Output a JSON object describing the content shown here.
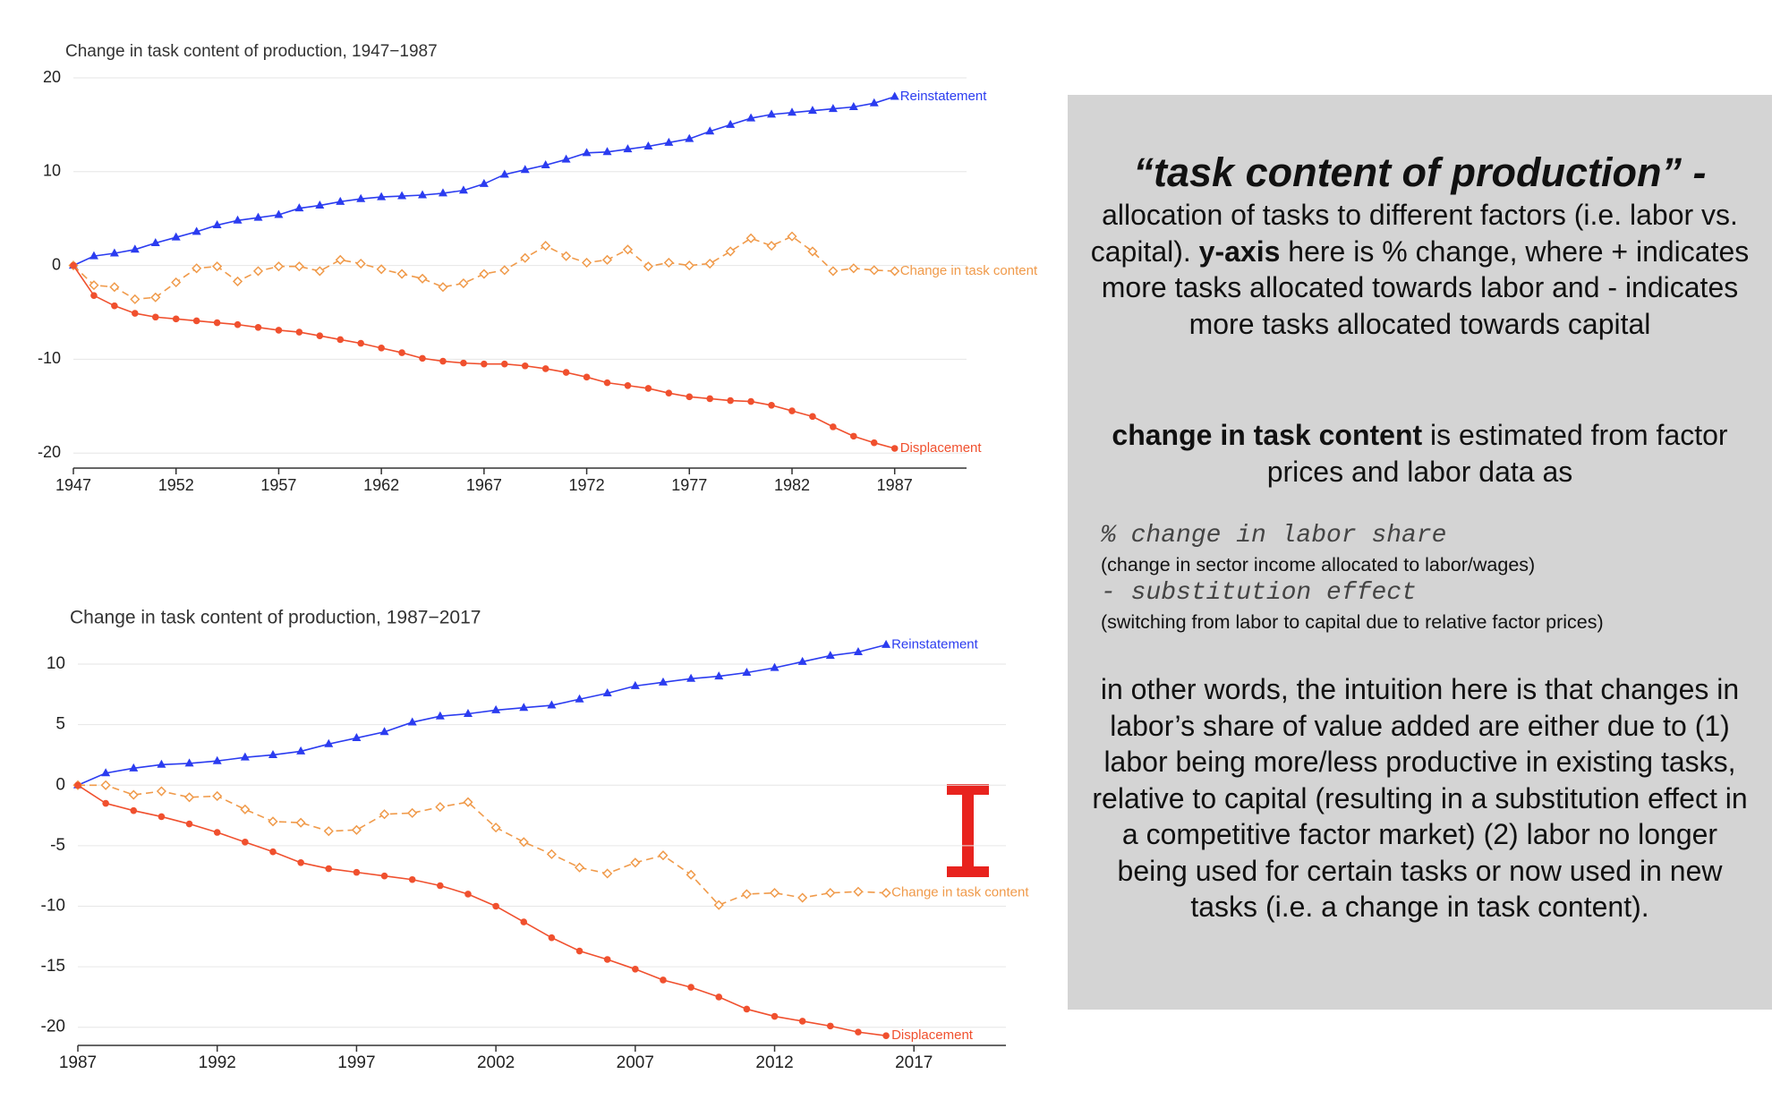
{
  "chart_data": [
    {
      "type": "line",
      "title": "Change in task content of production, 1947−1987",
      "x": [
        1947,
        1948,
        1949,
        1950,
        1951,
        1952,
        1953,
        1954,
        1955,
        1956,
        1957,
        1958,
        1959,
        1960,
        1961,
        1962,
        1963,
        1964,
        1965,
        1966,
        1967,
        1968,
        1969,
        1970,
        1971,
        1972,
        1973,
        1974,
        1975,
        1976,
        1977,
        1978,
        1979,
        1980,
        1981,
        1982,
        1983,
        1984,
        1985,
        1986,
        1987
      ],
      "xlim": [
        1947,
        1990.5
      ],
      "xticks": [
        1947,
        1952,
        1957,
        1962,
        1967,
        1972,
        1977,
        1982,
        1987
      ],
      "ylim": [
        -21.6,
        20
      ],
      "yticks": [
        -20,
        -10,
        0,
        10,
        20
      ],
      "grid": true,
      "series": [
        {
          "name": "Reinstatement",
          "color": "#2b3cf0",
          "marker": "triangle",
          "dashed": false,
          "values": [
            0,
            1,
            1.3,
            1.7,
            2.4,
            3,
            3.6,
            4.3,
            4.8,
            5.1,
            5.4,
            6.1,
            6.4,
            6.8,
            7.1,
            7.3,
            7.4,
            7.5,
            7.7,
            8,
            8.7,
            9.7,
            10.2,
            10.7,
            11.3,
            12,
            12.1,
            12.4,
            12.7,
            13.1,
            13.5,
            14.3,
            15,
            15.7,
            16.1,
            16.3,
            16.5,
            16.7,
            16.9,
            17.3,
            18
          ]
        },
        {
          "name": "Change in task content",
          "color": "#f09a4a",
          "marker": "diamond",
          "dashed": true,
          "values": [
            0,
            -2.1,
            -2.3,
            -3.6,
            -3.4,
            -1.8,
            -0.3,
            -0.1,
            -1.7,
            -0.6,
            -0.1,
            -0.1,
            -0.6,
            0.6,
            0.2,
            -0.4,
            -0.9,
            -1.4,
            -2.3,
            -1.9,
            -0.9,
            -0.5,
            0.8,
            2.1,
            1,
            0.3,
            0.6,
            1.7,
            -0.1,
            0.3,
            0,
            0.2,
            1.5,
            2.9,
            2.1,
            3.1,
            1.5,
            -0.6,
            -0.3,
            -0.5,
            -0.6
          ]
        },
        {
          "name": "Displacement",
          "color": "#f0502e",
          "marker": "circle",
          "dashed": false,
          "values": [
            0,
            -3.2,
            -4.3,
            -5.1,
            -5.5,
            -5.7,
            -5.9,
            -6.1,
            -6.3,
            -6.6,
            -6.9,
            -7.1,
            -7.5,
            -7.9,
            -8.3,
            -8.8,
            -9.3,
            -9.9,
            -10.2,
            -10.4,
            -10.5,
            -10.5,
            -10.7,
            -11,
            -11.4,
            -11.9,
            -12.5,
            -12.8,
            -13.1,
            -13.6,
            -14,
            -14.2,
            -14.4,
            -14.5,
            -14.9,
            -15.5,
            -16.1,
            -17.2,
            -18.2,
            -18.9,
            -19.5
          ]
        }
      ]
    },
    {
      "type": "line",
      "title": "Change in task content of production, 1987−2017",
      "x": [
        1987,
        1988,
        1989,
        1990,
        1991,
        1992,
        1993,
        1994,
        1995,
        1996,
        1997,
        1998,
        1999,
        2000,
        2001,
        2002,
        2003,
        2004,
        2005,
        2006,
        2007,
        2008,
        2009,
        2010,
        2011,
        2012,
        2013,
        2014,
        2015,
        2016
      ],
      "xlim": [
        1987,
        2020.3
      ],
      "xticks": [
        1987,
        1992,
        1997,
        2002,
        2007,
        2012,
        2017
      ],
      "ylim": [
        -21.5,
        12
      ],
      "yticks": [
        -20,
        -15,
        -10,
        -5,
        0,
        5,
        10
      ],
      "grid": true,
      "series": [
        {
          "name": "Reinstatement",
          "color": "#2b3cf0",
          "marker": "triangle",
          "dashed": false,
          "values": [
            0,
            1,
            1.4,
            1.7,
            1.8,
            2,
            2.3,
            2.5,
            2.8,
            3.4,
            3.9,
            4.4,
            5.2,
            5.7,
            5.9,
            6.2,
            6.4,
            6.6,
            7.1,
            7.6,
            8.2,
            8.5,
            8.8,
            9,
            9.3,
            9.7,
            10.2,
            10.7,
            11,
            11.6
          ]
        },
        {
          "name": "Change in task content",
          "color": "#f09a4a",
          "marker": "diamond",
          "dashed": true,
          "values": [
            0,
            0,
            -0.8,
            -0.5,
            -1,
            -0.9,
            -2,
            -3,
            -3.1,
            -3.8,
            -3.7,
            -2.4,
            -2.3,
            -1.8,
            -1.4,
            -3.5,
            -4.7,
            -5.7,
            -6.8,
            -7.3,
            -6.4,
            -5.8,
            -7.4,
            -9.9,
            -9,
            -8.9,
            -9.3,
            -8.9,
            -8.8,
            -8.9
          ]
        },
        {
          "name": "Displacement",
          "color": "#f0502e",
          "marker": "circle",
          "dashed": false,
          "values": [
            0,
            -1.5,
            -2.1,
            -2.6,
            -3.2,
            -3.9,
            -4.7,
            -5.5,
            -6.4,
            -6.9,
            -7.2,
            -7.5,
            -7.8,
            -8.3,
            -9,
            -10,
            -11.3,
            -12.6,
            -13.7,
            -14.4,
            -15.2,
            -16.1,
            -16.7,
            -17.5,
            -18.5,
            -19.1,
            -19.5,
            -19.9,
            -20.4,
            -20.7
          ]
        }
      ]
    }
  ],
  "note": {
    "heading": "“task content of production” -",
    "para1": {
      "bold": "y-axis",
      "before": "allocation of tasks to different factors (i.e. labor vs. capital).",
      "after": "here is % change, where + indicates more tasks allocated towards labor and - indicates more tasks allocated towards capital"
    },
    "para2": {
      "bold": "change in task content",
      "after": "is estimated from factor prices and labor data as"
    },
    "formula": [
      {
        "code": "% change in labor share",
        "explain": "(change in sector income allocated to labor/wages)"
      },
      {
        "code": "- substitution effect",
        "explain": "(switching from labor to capital due to relative factor prices)"
      }
    ],
    "para3": "in other words, the intuition here is that changes in labor’s share of value added are either due to (1) labor being more/less productive in existing tasks, relative to capital (resulting in a substitution effect in a competitive factor market) (2) labor no longer being used for certain tasks or now used in new tasks (i.e. a change in task content)."
  }
}
